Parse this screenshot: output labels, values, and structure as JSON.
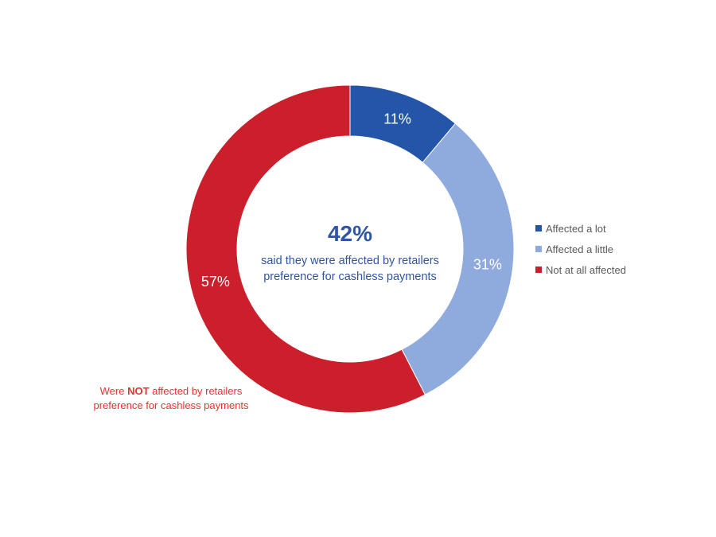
{
  "chart_data": {
    "type": "pie",
    "subtype": "donut",
    "categories": [
      "Affected a lot",
      "Affected a little",
      "Not at all affected"
    ],
    "values": [
      11,
      31,
      57
    ],
    "labels": [
      "11%",
      "31%",
      "57%"
    ],
    "colors": [
      "#2356A8",
      "#8FAADC",
      "#CC1F2C"
    ],
    "legend_position": "right",
    "center_annotation": {
      "value": "42%",
      "text": "said they were affected by retailers preference for cashless payments"
    },
    "annotations": [
      "Were NOT affected by retailers preference for cashless payments"
    ]
  },
  "center": {
    "value": "42%",
    "line1": "said they were affected by retailers",
    "line2": "preference for cashless payments"
  },
  "legend": {
    "items": [
      {
        "label": "Affected a lot",
        "color": "#2356A8"
      },
      {
        "label": "Affected a little",
        "color": "#8FAADC"
      },
      {
        "label": "Not at all affected",
        "color": "#CC1F2C"
      }
    ]
  },
  "note": {
    "prefix": "Were ",
    "emphasis": "NOT",
    "rest_line1": " affected by retailers",
    "line2": "preference for cashless payments"
  }
}
